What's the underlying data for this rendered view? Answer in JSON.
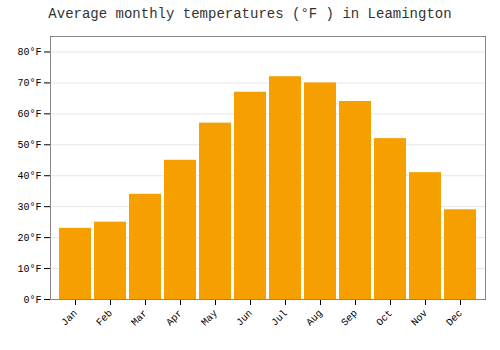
{
  "chart_data": {
    "type": "bar",
    "title": "Average monthly temperatures (°F ) in Leamington",
    "categories": [
      "Jan",
      "Feb",
      "Mar",
      "Apr",
      "May",
      "Jun",
      "Jul",
      "Aug",
      "Sep",
      "Oct",
      "Nov",
      "Dec"
    ],
    "values": [
      23,
      25,
      34,
      45,
      57,
      67,
      72,
      70,
      64,
      52,
      41,
      29
    ],
    "color": "#F5A000",
    "ylim": [
      0,
      85
    ],
    "yticks": [
      {
        "value": 0,
        "label": "0°F"
      },
      {
        "value": 10,
        "label": "10°F"
      },
      {
        "value": 20,
        "label": "20°F"
      },
      {
        "value": 30,
        "label": "30°F"
      },
      {
        "value": 40,
        "label": "40°F"
      },
      {
        "value": 50,
        "label": "50°F"
      },
      {
        "value": 60,
        "label": "60°F"
      },
      {
        "value": 70,
        "label": "70°F"
      },
      {
        "value": 80,
        "label": "80°F"
      }
    ],
    "grid": true
  }
}
